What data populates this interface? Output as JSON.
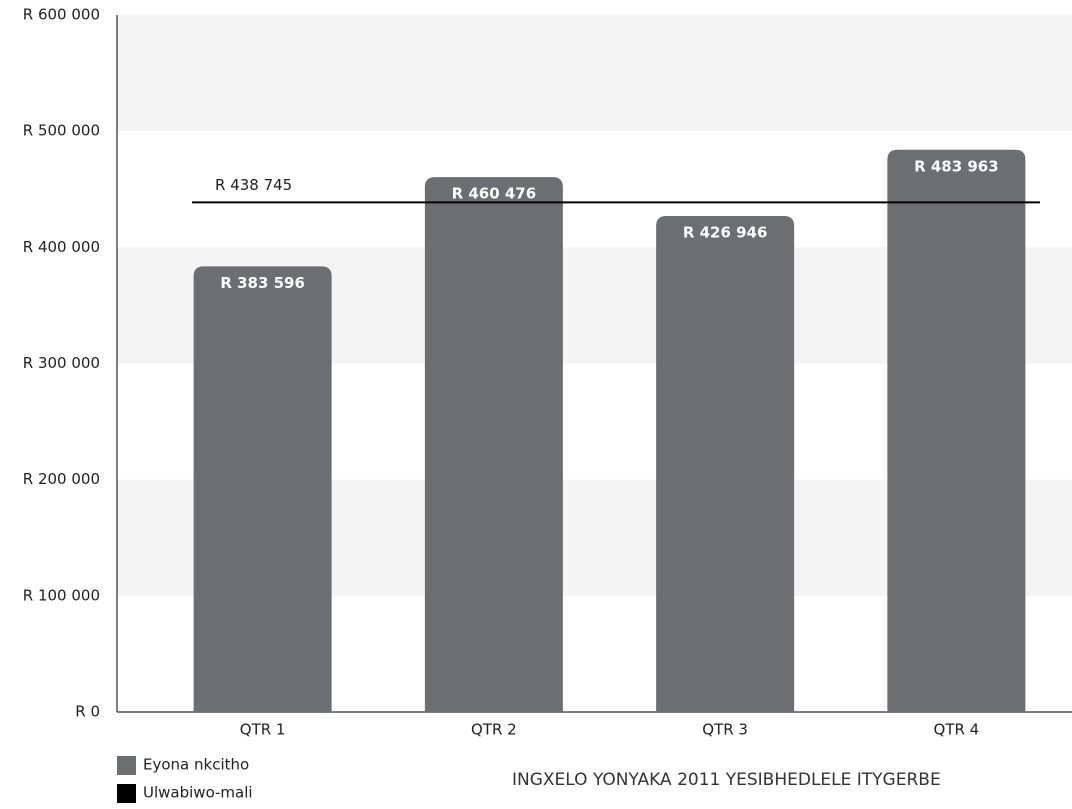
{
  "chart_data": {
    "type": "bar",
    "categories": [
      "QTR 1",
      "QTR 2",
      "QTR 3",
      "QTR 4"
    ],
    "series": [
      {
        "name": "Eyona nkcitho",
        "color": "#6d6e71",
        "values": [
          383596,
          460476,
          426946,
          483963
        ],
        "value_labels": [
          "R 383 596",
          "R 460 476",
          "R 426 946",
          "R 483 963"
        ]
      }
    ],
    "reference_line": {
      "name": "Ulwabiwo-mali",
      "color": "#000000",
      "value": 438745,
      "label": "R 438 745"
    },
    "ylim": [
      0,
      600000
    ],
    "yticks": [
      {
        "value": 0,
        "label": "R 0"
      },
      {
        "value": 100000,
        "label": "R 100 000"
      },
      {
        "value": 200000,
        "label": "R 200 000"
      },
      {
        "value": 300000,
        "label": "R 300 000"
      },
      {
        "value": 400000,
        "label": "R 400 000"
      },
      {
        "value": 500000,
        "label": "R 500 000"
      },
      {
        "value": 600000,
        "label": "R 600 000"
      }
    ],
    "grid": true,
    "footer": "INGXELO YONYAKA 2011 YESIBHEDLELE ITYGERBE"
  }
}
